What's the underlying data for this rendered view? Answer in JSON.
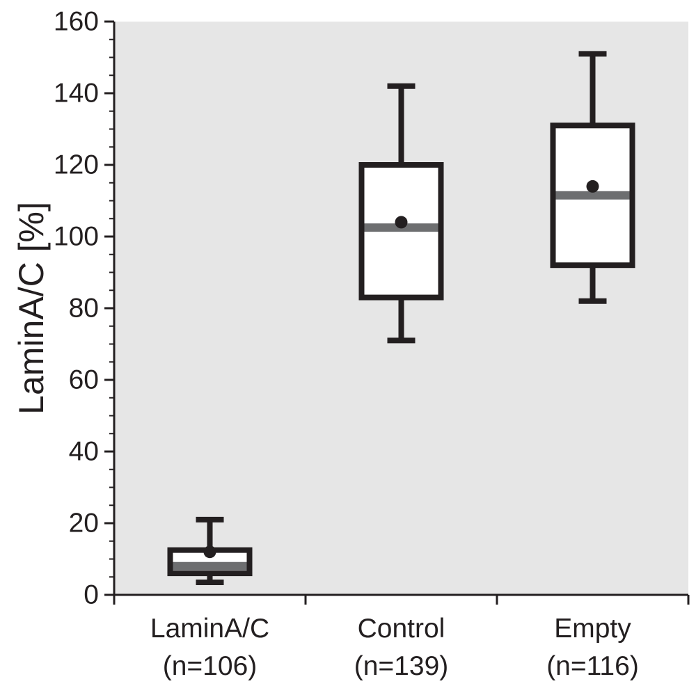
{
  "chart_data": {
    "type": "box",
    "ylabel": "LaminA/C [%]",
    "ylim": [
      0,
      160
    ],
    "yticks": [
      "0",
      "20",
      "40",
      "60",
      "80",
      "100",
      "120",
      "140",
      "160"
    ],
    "ytick_values": [
      0,
      20,
      40,
      60,
      80,
      100,
      120,
      140,
      160
    ],
    "minor_tick_step": 5,
    "grid": false,
    "legend": "none",
    "colors": {
      "plot_background": "#e6e6e6",
      "box_fill": "#ffffff",
      "box_stroke": "#231f20",
      "median": "#6d6e70",
      "mean_marker": "#231f20"
    },
    "categories": [
      {
        "label": "LaminA/C",
        "n_label": "(n=106)"
      },
      {
        "label": "Control",
        "n_label": "(n=139)"
      },
      {
        "label": "Empty",
        "n_label": "(n=116)"
      }
    ],
    "boxes": [
      {
        "whisker_low": 3.5,
        "q1": 6,
        "median": 8,
        "q3": 12.5,
        "whisker_high": 21,
        "mean": 12
      },
      {
        "whisker_low": 71,
        "q1": 83,
        "median": 102.5,
        "q3": 120,
        "whisker_high": 142,
        "mean": 104
      },
      {
        "whisker_low": 82,
        "q1": 92,
        "median": 111.5,
        "q3": 131,
        "whisker_high": 151,
        "mean": 114
      }
    ]
  }
}
